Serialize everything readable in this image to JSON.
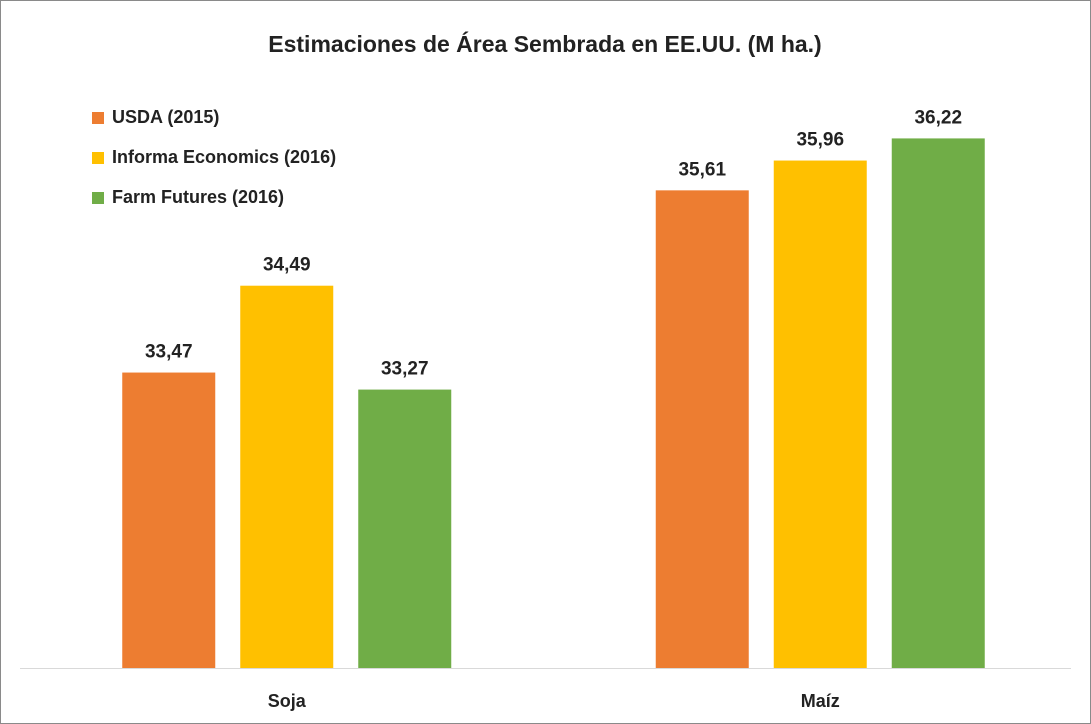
{
  "chart_data": {
    "type": "bar",
    "title": "Estimaciones de Área Sembrada en EE.UU. (M ha.)",
    "categories": [
      "Soja",
      "Maíz"
    ],
    "series": [
      {
        "name": "USDA (2015)",
        "color": "#ed7d31",
        "values": [
          33.47,
          35.61
        ],
        "value_labels": [
          "33,47",
          "35,61"
        ]
      },
      {
        "name": "Informa Economics (2016)",
        "color": "#ffc000",
        "values": [
          34.49,
          35.96
        ],
        "value_labels": [
          "34,49",
          "35,96"
        ]
      },
      {
        "name": "Farm Futures (2016)",
        "color": "#70ad47",
        "values": [
          33.27,
          36.22
        ],
        "value_labels": [
          "33,27",
          "36,22"
        ]
      }
    ],
    "ylim": [
      30,
      37
    ],
    "legend": "top-left"
  }
}
